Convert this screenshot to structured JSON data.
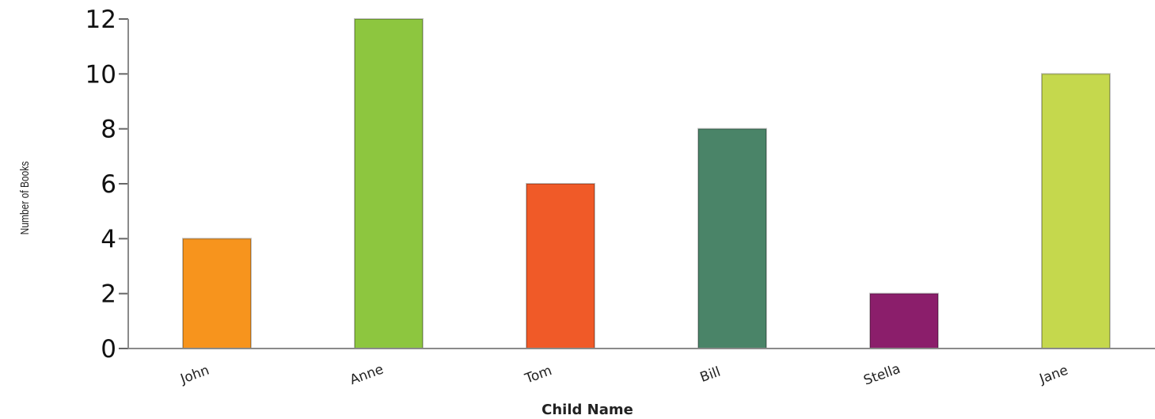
{
  "chart_data": {
    "type": "bar",
    "title": "",
    "xlabel": "Child Name",
    "ylabel": "Number of Books",
    "categories": [
      "John",
      "Anne",
      "Tom",
      "Bill",
      "Stella",
      "Jane"
    ],
    "values": [
      4,
      12,
      6,
      8,
      2,
      10
    ],
    "colors": [
      "#F7941D",
      "#8DC63F",
      "#F05A28",
      "#4A8468",
      "#8B1E6B",
      "#C5D84D"
    ],
    "ylim": [
      0,
      12
    ],
    "yticks": [
      "0",
      "2",
      "4",
      "6",
      "8",
      "10",
      "12"
    ],
    "grid": false,
    "legend": "none"
  }
}
